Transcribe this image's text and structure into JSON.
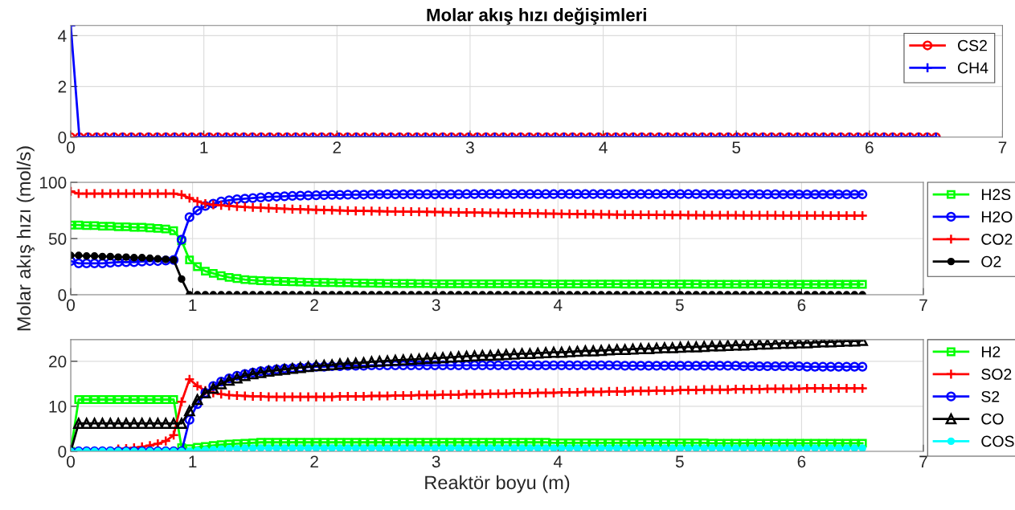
{
  "chart_data": [
    {
      "type": "line",
      "title": "Molar akış hızı değişimleri",
      "xlim": [
        0,
        7
      ],
      "xticks": [
        0,
        1,
        2,
        3,
        4,
        5,
        6,
        7
      ],
      "ylim": [
        0,
        4.4
      ],
      "yticks": [
        0,
        2,
        4
      ],
      "grid": true,
      "legend": "top right",
      "line_style": "solid",
      "x": [
        0,
        0.065,
        0.13,
        0.195,
        0.26,
        0.325,
        0.39,
        0.455,
        0.52,
        0.585,
        0.65,
        0.715,
        0.78,
        0.845,
        0.91,
        0.975,
        1.04,
        1.105,
        1.17,
        1.235,
        1.3,
        1.365,
        1.43,
        1.495,
        1.56,
        1.625,
        1.69,
        1.755,
        1.82,
        1.885,
        1.95,
        2.015,
        2.08,
        2.145,
        2.21,
        2.275,
        2.34,
        2.405,
        2.47,
        2.535,
        2.6,
        2.665,
        2.73,
        2.795,
        2.86,
        2.925,
        2.99,
        3.055,
        3.12,
        3.185,
        3.25,
        3.315,
        3.38,
        3.445,
        3.51,
        3.575,
        3.64,
        3.705,
        3.77,
        3.835,
        3.9,
        3.965,
        4.03,
        4.095,
        4.16,
        4.225,
        4.29,
        4.355,
        4.42,
        4.485,
        4.55,
        4.615,
        4.68,
        4.745,
        4.81,
        4.875,
        4.94,
        5.005,
        5.07,
        5.135,
        5.2,
        5.265,
        5.33,
        5.395,
        5.46,
        5.525,
        5.59,
        5.655,
        5.72,
        5.785,
        5.85,
        5.915,
        5.98,
        6.045,
        6.11,
        6.175,
        6.24,
        6.305,
        6.37,
        6.435,
        6.5
      ],
      "series": [
        {
          "name": "CS2",
          "color": "#ff0000",
          "marker": "circle",
          "values": [
            0,
            0,
            0,
            0,
            0,
            0,
            0,
            0,
            0,
            0,
            0,
            0,
            0,
            0,
            0,
            0,
            0,
            0,
            0,
            0,
            0,
            0,
            0,
            0,
            0,
            0,
            0,
            0,
            0,
            0,
            0,
            0,
            0,
            0,
            0,
            0,
            0,
            0,
            0,
            0,
            0,
            0,
            0,
            0,
            0,
            0,
            0,
            0,
            0,
            0,
            0,
            0,
            0,
            0,
            0,
            0,
            0,
            0,
            0,
            0,
            0,
            0,
            0,
            0,
            0,
            0,
            0,
            0,
            0,
            0,
            0,
            0,
            0,
            0,
            0,
            0,
            0,
            0,
            0,
            0,
            0,
            0,
            0,
            0,
            0,
            0,
            0,
            0,
            0,
            0,
            0,
            0,
            0,
            0,
            0,
            0,
            0,
            0,
            0,
            0,
            0
          ]
        },
        {
          "name": "CH4",
          "color": "#0000ff",
          "marker": "cross",
          "values": [
            4.4,
            0,
            0,
            0,
            0,
            0,
            0,
            0,
            0,
            0,
            0,
            0,
            0,
            0,
            0,
            0,
            0,
            0,
            0,
            0,
            0,
            0,
            0,
            0,
            0,
            0,
            0,
            0,
            0,
            0,
            0,
            0,
            0,
            0,
            0,
            0,
            0,
            0,
            0,
            0,
            0,
            0,
            0,
            0,
            0,
            0,
            0,
            0,
            0,
            0,
            0,
            0,
            0,
            0,
            0,
            0,
            0,
            0,
            0,
            0,
            0,
            0,
            0,
            0,
            0,
            0,
            0,
            0,
            0,
            0,
            0,
            0,
            0,
            0,
            0,
            0,
            0,
            0,
            0,
            0,
            0,
            0,
            0,
            0,
            0,
            0,
            0,
            0,
            0,
            0,
            0,
            0,
            0,
            0,
            0,
            0,
            0,
            0,
            0,
            0,
            0
          ]
        }
      ]
    },
    {
      "type": "line",
      "ylabel": "Molar akış hızı (mol/s)",
      "xlim": [
        0,
        7
      ],
      "xticks": [
        0,
        1,
        2,
        3,
        4,
        5,
        6,
        7
      ],
      "ylim": [
        0,
        100
      ],
      "yticks": [
        0,
        50,
        100
      ],
      "grid": true,
      "legend": "right",
      "line_style": "solid",
      "x": [
        0,
        0.065,
        0.13,
        0.195,
        0.26,
        0.325,
        0.39,
        0.455,
        0.52,
        0.585,
        0.65,
        0.715,
        0.78,
        0.845,
        0.91,
        0.975,
        1.04,
        1.105,
        1.17,
        1.235,
        1.3,
        1.365,
        1.43,
        1.495,
        1.56,
        1.625,
        1.69,
        1.755,
        1.82,
        1.885,
        1.95,
        2.015,
        2.08,
        2.145,
        2.21,
        2.275,
        2.34,
        2.405,
        2.47,
        2.535,
        2.6,
        2.665,
        2.73,
        2.795,
        2.86,
        2.925,
        2.99,
        3.055,
        3.12,
        3.185,
        3.25,
        3.315,
        3.38,
        3.445,
        3.51,
        3.575,
        3.64,
        3.705,
        3.77,
        3.835,
        3.9,
        3.965,
        4.03,
        4.095,
        4.16,
        4.225,
        4.29,
        4.355,
        4.42,
        4.485,
        4.55,
        4.615,
        4.68,
        4.745,
        4.81,
        4.875,
        4.94,
        5.005,
        5.07,
        5.135,
        5.2,
        5.265,
        5.33,
        5.395,
        5.46,
        5.525,
        5.59,
        5.655,
        5.72,
        5.785,
        5.85,
        5.915,
        5.98,
        6.045,
        6.11,
        6.175,
        6.24,
        6.305,
        6.37,
        6.435,
        6.5
      ],
      "series": [
        {
          "name": "H2S",
          "color": "#00ff00",
          "marker": "square",
          "values": [
            62,
            62,
            61.5,
            61.5,
            61,
            61,
            60.5,
            60.5,
            60,
            60,
            59.5,
            59,
            58.5,
            57,
            48,
            31,
            25,
            21,
            19,
            17,
            15.5,
            14.5,
            13.5,
            13,
            12.5,
            12.2,
            12,
            11.8,
            11.6,
            11.4,
            11.2,
            11,
            10.9,
            10.8,
            10.7,
            10.6,
            10.5,
            10.4,
            10.3,
            10.2,
            10.1,
            10,
            10,
            10,
            9.9,
            9.9,
            9.8,
            9.8,
            9.8,
            9.7,
            9.7,
            9.7,
            9.7,
            9.7,
            9.7,
            9.7,
            9.7,
            9.7,
            9.7,
            9.7,
            9.6,
            9.6,
            9.6,
            9.6,
            9.6,
            9.6,
            9.6,
            9.6,
            9.6,
            9.6,
            9.5,
            9.5,
            9.5,
            9.5,
            9.5,
            9.5,
            9.5,
            9.5,
            9.5,
            9.5,
            9.4,
            9.4,
            9.4,
            9.4,
            9.4,
            9.4,
            9.4,
            9.4,
            9.4,
            9.4,
            9.3,
            9.3,
            9.3,
            9.3,
            9.3,
            9.3,
            9.3,
            9.3,
            9.3,
            9.3,
            9.3
          ]
        },
        {
          "name": "H2O",
          "color": "#0000ff",
          "marker": "circle",
          "values": [
            30,
            28,
            28,
            28,
            28,
            28.5,
            29,
            29,
            29,
            29.5,
            30,
            30,
            30.5,
            31,
            49,
            69,
            75,
            79,
            81,
            83,
            84,
            85,
            85.5,
            86,
            86.5,
            87,
            87.3,
            87.6,
            87.9,
            88.1,
            88.3,
            88.5,
            88.7,
            88.8,
            88.9,
            89,
            89,
            89.1,
            89.2,
            89.3,
            89.4,
            89.4,
            89.4,
            89.4,
            89.4,
            89.4,
            89.4,
            89.4,
            89.4,
            89.4,
            89.5,
            89.5,
            89.5,
            89.5,
            89.5,
            89.5,
            89.5,
            89.5,
            89.5,
            89.5,
            89.5,
            89.5,
            89.5,
            89.5,
            89.5,
            89.5,
            89.5,
            89.5,
            89.5,
            89.5,
            89.5,
            89.5,
            89.5,
            89.5,
            89.5,
            89.5,
            89.5,
            89.5,
            89.5,
            89.5,
            89.4,
            89.4,
            89.4,
            89.4,
            89.4,
            89.4,
            89.4,
            89.4,
            89.4,
            89.4,
            89.3,
            89.3,
            89.3,
            89.3,
            89.3,
            89.3,
            89.3,
            89.3,
            89.3,
            89.3,
            89.3
          ]
        },
        {
          "name": "CO2",
          "color": "#ff0000",
          "marker": "cross",
          "values": [
            92,
            90,
            90,
            90,
            90,
            90,
            90,
            90,
            90,
            90,
            90,
            90,
            90,
            90,
            89,
            86,
            83,
            81,
            80,
            79.5,
            79,
            78.5,
            78,
            77.7,
            77.4,
            77.1,
            76.8,
            76.5,
            76.2,
            76,
            75.8,
            75.6,
            75.4,
            75.2,
            75,
            74.8,
            74.6,
            74.5,
            74.4,
            74.3,
            74.2,
            74.1,
            74,
            73.9,
            73.8,
            73.7,
            73.6,
            73.5,
            73.4,
            73.3,
            73.2,
            73.1,
            73,
            72.9,
            72.8,
            72.7,
            72.6,
            72.5,
            72.4,
            72.3,
            72.2,
            72.1,
            72,
            71.9,
            71.8,
            71.7,
            71.6,
            71.5,
            71.4,
            71.3,
            71.2,
            71.2,
            71.1,
            71.1,
            71,
            71,
            70.9,
            70.9,
            70.8,
            70.8,
            70.7,
            70.7,
            70.7,
            70.7,
            70.7,
            70.6,
            70.6,
            70.6,
            70.6,
            70.6,
            70.5,
            70.5,
            70.5,
            70.5,
            70.5,
            70.5,
            70.4,
            70.4,
            70.4,
            70.4,
            70.4
          ]
        },
        {
          "name": "O2",
          "color": "#000000",
          "marker": "dot",
          "values": [
            35,
            35,
            34.5,
            34.5,
            34,
            34,
            33.5,
            33.5,
            33,
            33,
            32.5,
            32,
            31.5,
            31,
            14,
            0,
            0,
            0,
            0,
            0,
            0,
            0,
            0,
            0,
            0,
            0,
            0,
            0,
            0,
            0,
            0,
            0,
            0,
            0,
            0,
            0,
            0,
            0,
            0,
            0,
            0,
            0,
            0,
            0,
            0,
            0,
            0,
            0,
            0,
            0,
            0,
            0,
            0,
            0,
            0,
            0,
            0,
            0,
            0,
            0,
            0,
            0,
            0,
            0,
            0,
            0,
            0,
            0,
            0,
            0,
            0,
            0,
            0,
            0,
            0,
            0,
            0,
            0,
            0,
            0,
            0,
            0,
            0,
            0,
            0,
            0,
            0,
            0,
            0,
            0,
            0,
            0,
            0,
            0,
            0,
            0,
            0,
            0,
            0,
            0,
            0
          ]
        }
      ]
    },
    {
      "type": "line",
      "xlabel": "Reaktör boyu (m)",
      "xlim": [
        0,
        7
      ],
      "xticks": [
        0,
        1,
        2,
        3,
        4,
        5,
        6,
        7
      ],
      "ylim": [
        0,
        24.8
      ],
      "yticks": [
        0,
        10,
        20
      ],
      "grid": true,
      "legend": "right",
      "line_style": "solid",
      "x": [
        0,
        0.065,
        0.13,
        0.195,
        0.26,
        0.325,
        0.39,
        0.455,
        0.52,
        0.585,
        0.65,
        0.715,
        0.78,
        0.845,
        0.91,
        0.975,
        1.04,
        1.105,
        1.17,
        1.235,
        1.3,
        1.365,
        1.43,
        1.495,
        1.56,
        1.625,
        1.69,
        1.755,
        1.82,
        1.885,
        1.95,
        2.015,
        2.08,
        2.145,
        2.21,
        2.275,
        2.34,
        2.405,
        2.47,
        2.535,
        2.6,
        2.665,
        2.73,
        2.795,
        2.86,
        2.925,
        2.99,
        3.055,
        3.12,
        3.185,
        3.25,
        3.315,
        3.38,
        3.445,
        3.51,
        3.575,
        3.64,
        3.705,
        3.77,
        3.835,
        3.9,
        3.965,
        4.03,
        4.095,
        4.16,
        4.225,
        4.29,
        4.355,
        4.42,
        4.485,
        4.55,
        4.615,
        4.68,
        4.745,
        4.81,
        4.875,
        4.94,
        5.005,
        5.07,
        5.135,
        5.2,
        5.265,
        5.33,
        5.395,
        5.46,
        5.525,
        5.59,
        5.655,
        5.72,
        5.785,
        5.85,
        5.915,
        5.98,
        6.045,
        6.11,
        6.175,
        6.24,
        6.305,
        6.37,
        6.435,
        6.5
      ],
      "series": [
        {
          "name": "H2",
          "color": "#00ff00",
          "marker": "square",
          "values": [
            0,
            11.5,
            11.5,
            11.5,
            11.5,
            11.5,
            11.5,
            11.5,
            11.5,
            11.5,
            11.5,
            11.5,
            11.5,
            11.5,
            0.8,
            0.6,
            0.9,
            1.1,
            1.3,
            1.5,
            1.6,
            1.7,
            1.8,
            1.9,
            2,
            2,
            2,
            2,
            2,
            2,
            2,
            2,
            2,
            2,
            2,
            2,
            2,
            2,
            2,
            2,
            2,
            2,
            2,
            2,
            2,
            2,
            2,
            2,
            2,
            2,
            2,
            2,
            2,
            2,
            2,
            2,
            2,
            2,
            2,
            2,
            2,
            1.9,
            1.9,
            1.9,
            1.9,
            1.9,
            1.9,
            1.9,
            1.9,
            1.9,
            1.9,
            1.9,
            1.9,
            1.9,
            1.9,
            1.9,
            1.9,
            1.9,
            1.9,
            1.9,
            1.9,
            1.8,
            1.8,
            1.8,
            1.8,
            1.8,
            1.8,
            1.8,
            1.8,
            1.8,
            1.8,
            1.8,
            1.8,
            1.8,
            1.8,
            1.8,
            1.8,
            1.8,
            1.8,
            1.8,
            1.8
          ]
        },
        {
          "name": "SO2",
          "color": "#ff0000",
          "marker": "cross",
          "values": [
            null,
            null,
            null,
            null,
            null,
            null,
            0.5,
            0.6,
            0.8,
            1,
            1.3,
            1.7,
            2.3,
            3.6,
            11,
            16,
            14.5,
            13.5,
            13,
            12.7,
            12.5,
            12.4,
            12.3,
            12.2,
            12.2,
            12.1,
            12.1,
            12.1,
            12.1,
            12.1,
            12.1,
            12.1,
            12.1,
            12.1,
            12.2,
            12.2,
            12.2,
            12.2,
            12.3,
            12.3,
            12.3,
            12.4,
            12.4,
            12.4,
            12.5,
            12.5,
            12.5,
            12.6,
            12.6,
            12.6,
            12.7,
            12.7,
            12.7,
            12.8,
            12.8,
            12.8,
            12.9,
            12.9,
            12.9,
            13,
            13,
            13,
            13.1,
            13.1,
            13.1,
            13.2,
            13.2,
            13.2,
            13.3,
            13.3,
            13.3,
            13.4,
            13.4,
            13.4,
            13.5,
            13.5,
            13.5,
            13.6,
            13.6,
            13.6,
            13.7,
            13.7,
            13.7,
            13.7,
            13.8,
            13.8,
            13.8,
            13.8,
            13.9,
            13.9,
            13.9,
            13.9,
            13.9,
            14,
            14,
            14,
            14,
            14,
            14,
            14,
            14
          ]
        },
        {
          "name": "S2",
          "color": "#0000ff",
          "marker": "circle",
          "values": [
            0,
            0,
            0,
            0,
            0,
            0,
            0,
            0,
            0,
            0,
            0,
            0,
            0,
            0,
            0,
            7,
            10.5,
            13,
            14.5,
            15.5,
            16.2,
            16.8,
            17.2,
            17.5,
            17.8,
            18,
            18.2,
            18.4,
            18.5,
            18.6,
            18.7,
            18.8,
            18.8,
            18.9,
            18.9,
            19,
            19,
            19,
            19.1,
            19.1,
            19.1,
            19.1,
            19.1,
            19.1,
            19.1,
            19.1,
            19.1,
            19.1,
            19.1,
            19.1,
            19.1,
            19.1,
            19.1,
            19.1,
            19.1,
            19.1,
            19.1,
            19.1,
            19.1,
            19.1,
            19.1,
            19.1,
            19.1,
            19.1,
            19.1,
            19.1,
            19.1,
            19.1,
            19.1,
            19.1,
            19,
            19,
            19,
            19,
            19,
            19,
            19,
            19,
            19,
            19,
            19,
            19,
            19,
            19,
            19,
            18.9,
            18.9,
            18.9,
            18.9,
            18.9,
            18.9,
            18.9,
            18.9,
            18.8,
            18.8,
            18.8,
            18.8,
            18.8,
            18.8,
            18.8,
            18.8
          ]
        },
        {
          "name": "CO",
          "color": "#000000",
          "marker": "triangle",
          "values": [
            0,
            6.2,
            6.2,
            6.2,
            6.2,
            6.2,
            6.2,
            6.2,
            6.2,
            6.2,
            6.2,
            6.2,
            6.2,
            6.2,
            6.2,
            9,
            11.5,
            13,
            14,
            15,
            15.8,
            16.3,
            16.8,
            17.2,
            17.5,
            17.8,
            18,
            18.2,
            18.4,
            18.6,
            18.8,
            19,
            19.1,
            19.2,
            19.4,
            19.5,
            19.6,
            19.7,
            19.9,
            20,
            20.1,
            20.2,
            20.3,
            20.4,
            20.5,
            20.6,
            20.7,
            20.8,
            20.9,
            21,
            21.1,
            21.2,
            21.3,
            21.3,
            21.4,
            21.5,
            21.6,
            21.7,
            21.7,
            21.8,
            21.9,
            22,
            22,
            22.1,
            22.2,
            22.3,
            22.3,
            22.4,
            22.5,
            22.6,
            22.6,
            22.7,
            22.8,
            22.8,
            22.9,
            23,
            23,
            23.1,
            23.2,
            23.2,
            23.3,
            23.4,
            23.4,
            23.5,
            23.6,
            23.6,
            23.7,
            23.8,
            23.8,
            23.9,
            24,
            24,
            24.1,
            24.1,
            24.2,
            24.3,
            24.3,
            24.4,
            24.5,
            24.5,
            24.6
          ]
        },
        {
          "name": "COS",
          "color": "#00ffff",
          "marker": "dot",
          "values": [
            0,
            0,
            0,
            0,
            0,
            0,
            0,
            0,
            0,
            0,
            0,
            0,
            0,
            0,
            0,
            0.1,
            0.2,
            0.3,
            0.4,
            0.5,
            0.6,
            0.6,
            0.7,
            0.7,
            0.7,
            0.7,
            0.7,
            0.7,
            0.7,
            0.7,
            0.7,
            0.7,
            0.7,
            0.7,
            0.7,
            0.7,
            0.7,
            0.7,
            0.7,
            0.7,
            0.7,
            0.7,
            0.7,
            0.7,
            0.7,
            0.7,
            0.7,
            0.7,
            0.7,
            0.7,
            0.7,
            0.7,
            0.7,
            0.7,
            0.7,
            0.7,
            0.7,
            0.7,
            0.7,
            0.7,
            0.7,
            0.7,
            0.7,
            0.7,
            0.7,
            0.7,
            0.7,
            0.7,
            0.7,
            0.7,
            0.7,
            0.7,
            0.7,
            0.7,
            0.7,
            0.7,
            0.7,
            0.7,
            0.7,
            0.7,
            0.7,
            0.7,
            0.7,
            0.7,
            0.7,
            0.7,
            0.7,
            0.7,
            0.7,
            0.7,
            0.7,
            0.7,
            0.7,
            0.7,
            0.7,
            0.7,
            0.7,
            0.7,
            0.7,
            0.7,
            0.7
          ]
        }
      ]
    }
  ]
}
